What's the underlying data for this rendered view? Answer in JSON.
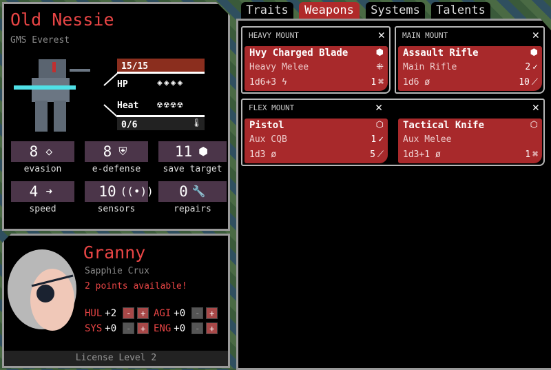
{
  "mech": {
    "name": "Old Nessie",
    "frame": "GMS Everest",
    "hp": {
      "value": "15/15",
      "label": "HP",
      "structure_icons": 4,
      "fill": 1.0
    },
    "heat": {
      "value": "0/6",
      "label": "Heat",
      "stress_icons": 4,
      "fill": 0.0
    },
    "stats": [
      {
        "value": "8",
        "label": "evasion",
        "icon": "evasion-icon"
      },
      {
        "value": "8",
        "label": "e-defense",
        "icon": "e-defense-icon"
      },
      {
        "value": "11",
        "label": "save target",
        "icon": "save-target-icon"
      },
      {
        "value": "4",
        "label": "speed",
        "icon": "speed-icon"
      },
      {
        "value": "10",
        "label": "sensors",
        "icon": "sensors-icon"
      },
      {
        "value": "0",
        "label": "repairs",
        "icon": "repairs-icon"
      }
    ]
  },
  "pilot": {
    "callsign": "Granny",
    "name": "Sapphie Crux",
    "points": "2 points available!",
    "license": "License Level 2",
    "attributes": [
      {
        "key": "HUL",
        "value": "+2"
      },
      {
        "key": "AGI",
        "value": "+0"
      },
      {
        "key": "SYS",
        "value": "+0"
      },
      {
        "key": "ENG",
        "value": "+0"
      }
    ]
  },
  "tabs": [
    {
      "label": "Traits"
    },
    {
      "label": "Weapons",
      "active": true
    },
    {
      "label": "Systems"
    },
    {
      "label": "Talents"
    }
  ],
  "mounts": [
    {
      "label": "HEAVY MOUNT",
      "weapons": [
        {
          "name": "Hvy Charged Blade",
          "type": "Heavy Melee",
          "damage": "1d6+3",
          "right1": "",
          "right2": "1"
        }
      ]
    },
    {
      "label": "MAIN MOUNT",
      "weapons": [
        {
          "name": "Assault Rifle",
          "type": "Main Rifle",
          "damage": "1d6",
          "right1": "2",
          "right2": "10"
        }
      ]
    },
    {
      "label": "FLEX MOUNT",
      "weapons": [
        {
          "name": "Pistol",
          "type": "Aux CQB",
          "damage": "1d3",
          "right1": "1",
          "right2": "5"
        },
        {
          "name": "Tactical Knife",
          "type": "Aux Melee",
          "damage": "1d3+1",
          "right1": "",
          "right2": "1"
        }
      ]
    }
  ],
  "colors": {
    "accent": "#e84545",
    "card": "#a8292b",
    "stat_box": "#4b3549",
    "hp_bar": "#8b2e1e"
  }
}
